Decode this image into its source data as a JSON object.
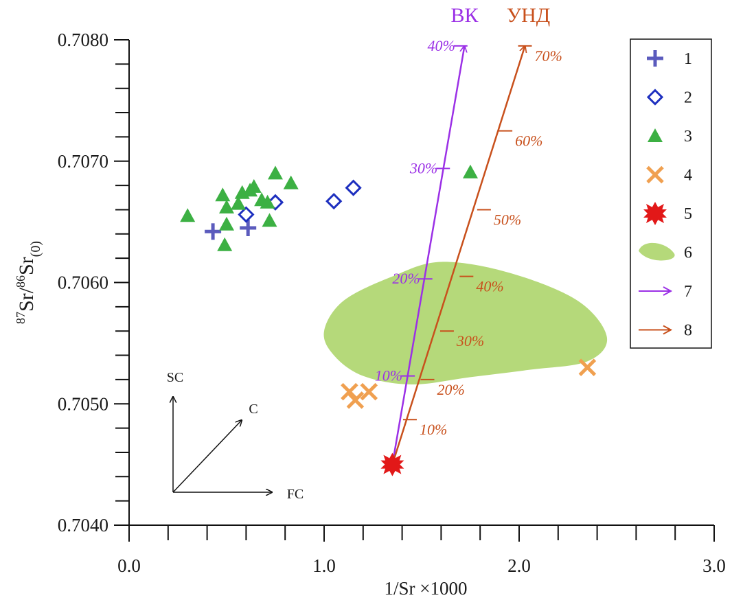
{
  "chart_data": {
    "type": "scatter",
    "xlabel": "1/Sr ×1000",
    "ylabel_main": "Sr/",
    "ylabel_sup1": "87",
    "ylabel_sup2": "86",
    "ylabel_tail": "Sr",
    "ylabel_sub": "(0)",
    "xlim": [
      0.0,
      3.0
    ],
    "ylim": [
      0.704,
      0.708
    ],
    "x_ticks": [
      "0.0",
      "1.0",
      "2.0",
      "3.0"
    ],
    "y_ticks": [
      "0.7040",
      "0.7050",
      "0.7060",
      "0.7070",
      "0.7080"
    ],
    "grid": false,
    "legend_position": "top-right",
    "series": [
      {
        "name": "1",
        "marker": "plus",
        "color": "#5b5bbd",
        "points": [
          [
            0.43,
            0.70642
          ],
          [
            0.61,
            0.70645
          ]
        ]
      },
      {
        "name": "2",
        "marker": "diamond",
        "color": "#1d2fbf",
        "points": [
          [
            0.6,
            0.70656
          ],
          [
            0.75,
            0.70666
          ],
          [
            1.05,
            0.70667
          ],
          [
            1.15,
            0.70678
          ]
        ]
      },
      {
        "name": "3",
        "marker": "triangle",
        "color": "#3cb043",
        "points": [
          [
            0.3,
            0.70655
          ],
          [
            0.48,
            0.70672
          ],
          [
            0.5,
            0.70662
          ],
          [
            0.5,
            0.70648
          ],
          [
            0.49,
            0.70631
          ],
          [
            0.56,
            0.70665
          ],
          [
            0.58,
            0.70674
          ],
          [
            0.62,
            0.70676
          ],
          [
            0.64,
            0.70679
          ],
          [
            0.68,
            0.70668
          ],
          [
            0.71,
            0.70666
          ],
          [
            0.72,
            0.70651
          ],
          [
            0.75,
            0.7069
          ],
          [
            0.83,
            0.70682
          ],
          [
            1.75,
            0.70691
          ]
        ]
      },
      {
        "name": "4",
        "marker": "cross",
        "color": "#f0a050",
        "points": [
          [
            1.13,
            0.7051
          ],
          [
            1.16,
            0.70503
          ],
          [
            1.23,
            0.7051
          ],
          [
            2.35,
            0.7053
          ]
        ]
      },
      {
        "name": "5",
        "marker": "star",
        "color": "#e21818",
        "points": [
          [
            1.35,
            0.7045
          ]
        ]
      }
    ],
    "field": {
      "name": "6",
      "color": "#b5d97a",
      "outline": [
        [
          1.0,
          0.7056
        ],
        [
          1.1,
          0.70585
        ],
        [
          1.35,
          0.70605
        ],
        [
          1.6,
          0.70617
        ],
        [
          1.95,
          0.70608
        ],
        [
          2.3,
          0.70585
        ],
        [
          2.45,
          0.70555
        ],
        [
          2.35,
          0.70535
        ],
        [
          2.05,
          0.70528
        ],
        [
          1.75,
          0.70522
        ],
        [
          1.45,
          0.70516
        ],
        [
          1.2,
          0.70523
        ],
        [
          1.05,
          0.7054
        ]
      ]
    },
    "mixing_lines": [
      {
        "name": "7",
        "label": "ВК",
        "color": "#9b30e6",
        "start": [
          1.35,
          0.7045
        ],
        "end": [
          1.72,
          0.70795
        ],
        "ticks": [
          {
            "label": "10%",
            "x": 1.43,
            "y": 0.70523
          },
          {
            "label": "20%",
            "x": 1.52,
            "y": 0.70603
          },
          {
            "label": "30%",
            "x": 1.61,
            "y": 0.70694
          },
          {
            "label": "40%",
            "x": 1.7,
            "y": 0.70795
          }
        ]
      },
      {
        "name": "8",
        "label": "УНД",
        "color": "#c8501c",
        "start": [
          1.35,
          0.7045
        ],
        "end": [
          2.03,
          0.70795
        ],
        "ticks": [
          {
            "label": "10%",
            "x": 1.44,
            "y": 0.70487
          },
          {
            "label": "20%",
            "x": 1.53,
            "y": 0.7052
          },
          {
            "label": "30%",
            "x": 1.63,
            "y": 0.7056
          },
          {
            "label": "40%",
            "x": 1.73,
            "y": 0.70605
          },
          {
            "label": "50%",
            "x": 1.82,
            "y": 0.7066
          },
          {
            "label": "60%",
            "x": 1.93,
            "y": 0.70725
          },
          {
            "label": "70%",
            "x": 2.03,
            "y": 0.70795
          }
        ]
      }
    ],
    "process_vectors": [
      {
        "name": "SC",
        "direction": "up"
      },
      {
        "name": "C",
        "direction": "diagonal"
      },
      {
        "name": "FC",
        "direction": "right"
      }
    ]
  }
}
